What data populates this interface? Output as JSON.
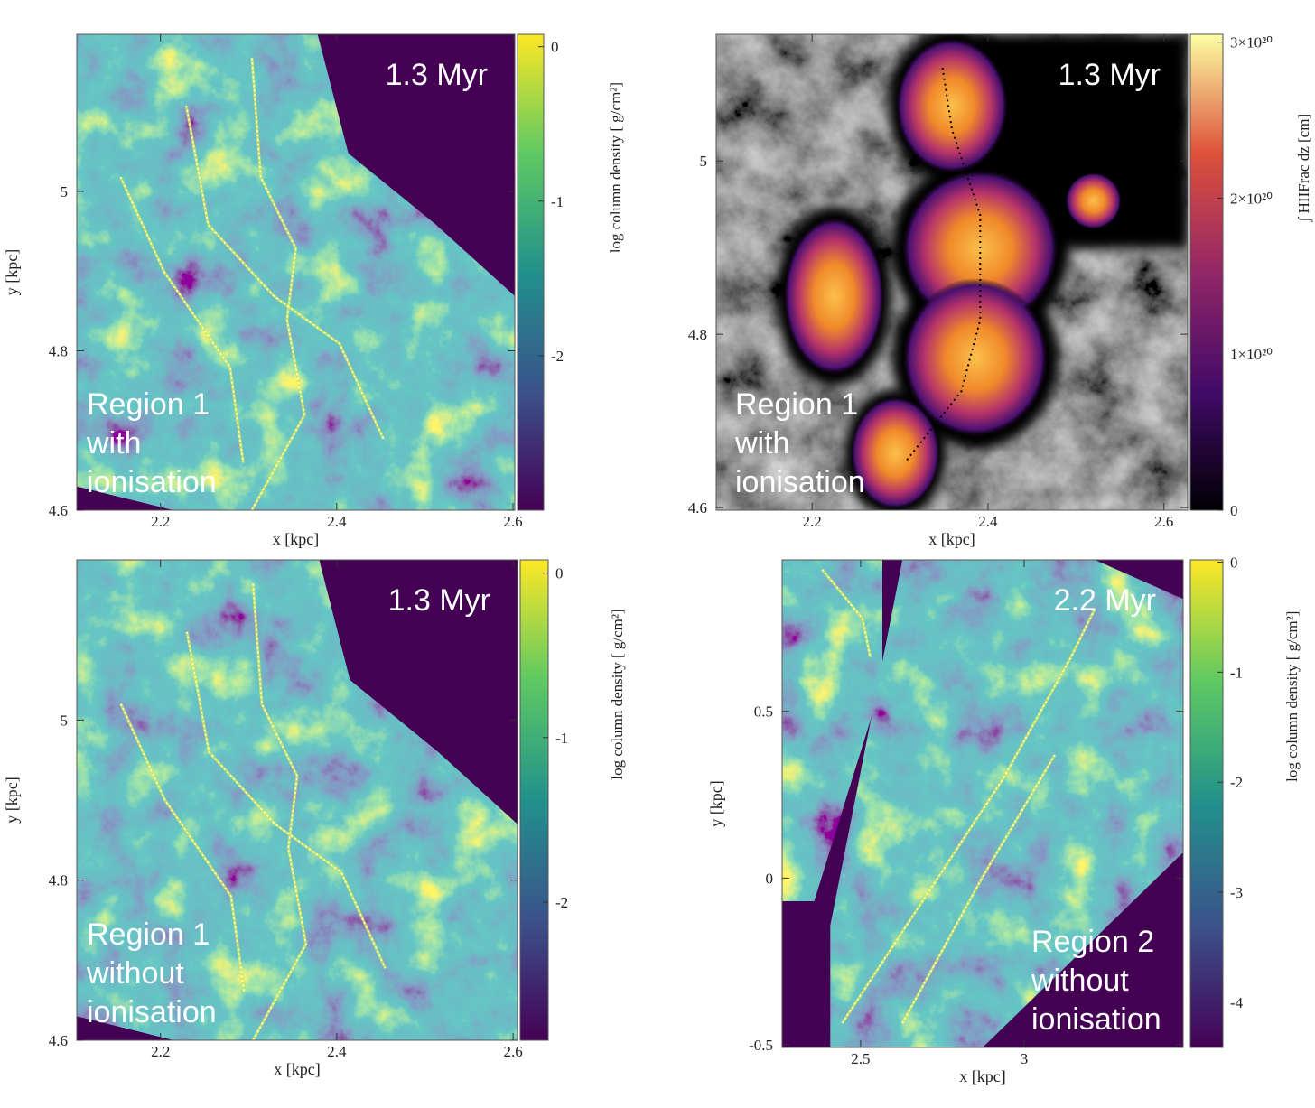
{
  "chart_data": [
    {
      "type": "heatmap",
      "xlabel": "x [kpc]",
      "ylabel": "y [kpc]",
      "xlim": [
        2.105,
        2.602
      ],
      "ylim": [
        4.6,
        5.197
      ],
      "xticks": [
        2.2,
        2.4,
        2.6
      ],
      "yticks": [
        4.6,
        4.8,
        5
      ],
      "colormap": "viridis",
      "colorbar": {
        "label": "log column density [ g/cm²]",
        "lim": [
          -3,
          0.08
        ],
        "ticks": [
          0,
          -1,
          -2
        ]
      },
      "time": "1.3 Myr",
      "region": [
        "Region 1",
        "with",
        "ionisation"
      ]
    },
    {
      "type": "heatmap",
      "xlabel": "x [kpc]",
      "ylabel": "",
      "xlim": [
        2.091,
        2.627
      ],
      "ylim": [
        4.597,
        5.146
      ],
      "xticks": [
        2.2,
        2.4,
        2.6
      ],
      "yticks": [
        4.6,
        4.8,
        5
      ],
      "colormap": "inferno",
      "colorbar": {
        "label": "∫ HIIFrac dz [cm]",
        "lim": [
          0,
          3.05e+20
        ],
        "ticks": [
          0,
          {
            "value": 1e+20,
            "label": "1×10²⁰"
          },
          {
            "value": 2e+20,
            "label": "2×10²⁰"
          },
          {
            "value": 3e+20,
            "label": "3×10²⁰"
          }
        ]
      },
      "time": "1.3 Myr",
      "region": [
        "Region 1",
        "with",
        "ionisation"
      ]
    },
    {
      "type": "heatmap",
      "xlabel": "x [kpc]",
      "ylabel": "y [kpc]",
      "xlim": [
        2.105,
        2.605
      ],
      "ylim": [
        4.6,
        5.2
      ],
      "xticks": [
        2.2,
        2.4,
        2.6
      ],
      "yticks": [
        4.6,
        4.8,
        5
      ],
      "colormap": "viridis",
      "colorbar": {
        "label": "log column density [ g/cm²]",
        "lim": [
          -2.84,
          0.08
        ],
        "ticks": [
          0,
          -1,
          -2
        ]
      },
      "time": "1.3 Myr",
      "region": [
        "Region 1",
        "without",
        "ionisation"
      ]
    },
    {
      "type": "heatmap",
      "xlabel": "x [kpc]",
      "ylabel": "y [kpc]",
      "xlim": [
        2.26,
        3.486
      ],
      "ylim": [
        -0.508,
        0.954
      ],
      "xticks": [
        2.5,
        3
      ],
      "yticks": [
        -0.5,
        0,
        0.5
      ],
      "colormap": "viridis",
      "colorbar": {
        "label": "log column density [ g/cm²]",
        "lim": [
          -4.41,
          0.02
        ],
        "ticks": [
          0,
          -1,
          -2,
          -3,
          -4
        ]
      },
      "time": "2.2 Myr",
      "region": [
        "Region 2",
        "without",
        "ionisation"
      ]
    }
  ]
}
